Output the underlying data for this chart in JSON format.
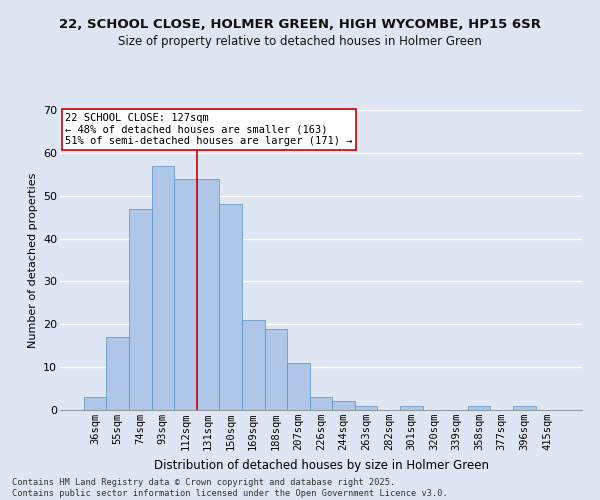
{
  "title": "22, SCHOOL CLOSE, HOLMER GREEN, HIGH WYCOMBE, HP15 6SR",
  "subtitle": "Size of property relative to detached houses in Holmer Green",
  "xlabel": "Distribution of detached houses by size in Holmer Green",
  "ylabel": "Number of detached properties",
  "categories": [
    "36sqm",
    "55sqm",
    "74sqm",
    "93sqm",
    "112sqm",
    "131sqm",
    "150sqm",
    "169sqm",
    "188sqm",
    "207sqm",
    "226sqm",
    "244sqm",
    "263sqm",
    "282sqm",
    "301sqm",
    "320sqm",
    "339sqm",
    "358sqm",
    "377sqm",
    "396sqm",
    "415sqm"
  ],
  "values": [
    3,
    17,
    47,
    57,
    54,
    54,
    48,
    21,
    19,
    11,
    3,
    2,
    1,
    0,
    1,
    0,
    0,
    1,
    0,
    1,
    0
  ],
  "bar_color": "#aec6e8",
  "bar_edge_color": "#5a8fc2",
  "bg_color": "#dde6f2",
  "grid_color": "#ffffff",
  "vline_color": "#cc0000",
  "annotation_text": "22 SCHOOL CLOSE: 127sqm\n← 48% of detached houses are smaller (163)\n51% of semi-detached houses are larger (171) →",
  "annotation_box_color": "#ffffff",
  "annotation_box_edge": "#cc0000",
  "ylim": [
    0,
    70
  ],
  "yticks": [
    0,
    10,
    20,
    30,
    40,
    50,
    60,
    70
  ],
  "footer": "Contains HM Land Registry data © Crown copyright and database right 2025.\nContains public sector information licensed under the Open Government Licence v3.0.",
  "title_fontsize": 9.5,
  "subtitle_fontsize": 8.5,
  "xlabel_fontsize": 8.5,
  "ylabel_fontsize": 8,
  "tick_fontsize": 7.5,
  "footer_fontsize": 6.2,
  "annot_fontsize": 7.5
}
